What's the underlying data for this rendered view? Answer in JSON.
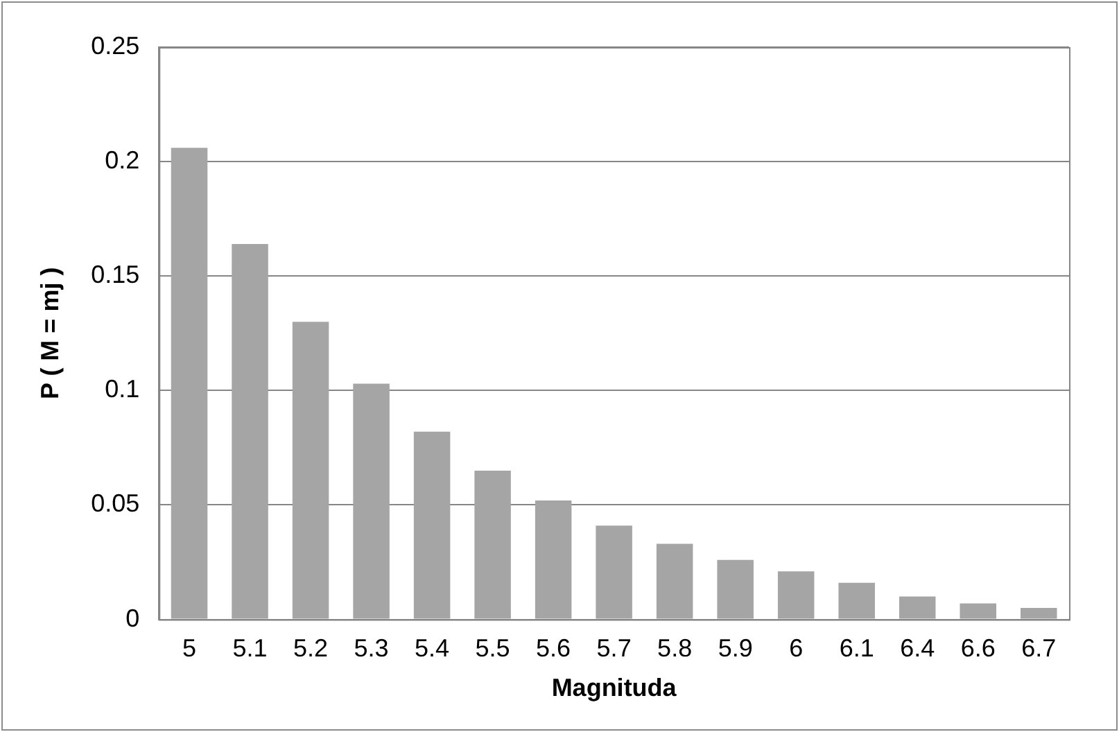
{
  "chart_data": {
    "type": "bar",
    "xlabel": "Magnituda",
    "ylabel": "P ( M = mj )",
    "categories": [
      "5",
      "5.1",
      "5.2",
      "5.3",
      "5.4",
      "5.5",
      "5.6",
      "5.7",
      "5.8",
      "5.9",
      "6",
      "6.1",
      "6.4",
      "6.6",
      "6.7"
    ],
    "values": [
      0.206,
      0.164,
      0.13,
      0.103,
      0.082,
      0.065,
      0.052,
      0.041,
      0.033,
      0.026,
      0.021,
      0.016,
      0.01,
      0.007,
      0.005
    ],
    "color": "#a5a5a5",
    "ylim": [
      0,
      0.25
    ],
    "yticks": [
      0,
      0.05,
      0.1,
      0.15,
      0.2,
      0.25
    ],
    "grid": "y",
    "legend": false
  }
}
